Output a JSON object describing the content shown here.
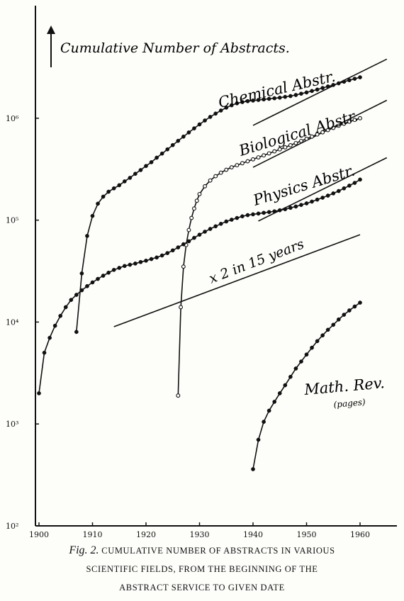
{
  "chart_data": {
    "type": "scatter",
    "y_scale": "log",
    "xlim": [
      1900,
      1970
    ],
    "ylim": [
      100,
      10000000
    ],
    "ylabel": "Cumulative Number of Abstracts.",
    "x_ticks": [
      1900,
      1910,
      1920,
      1930,
      1940,
      1950,
      1960
    ],
    "x_tick_labels": [
      "1900",
      "1910",
      "1920",
      "1930",
      "1940",
      "1950",
      "1960"
    ],
    "y_ticks": [
      100,
      1000,
      10000,
      100000,
      1000000
    ],
    "y_tick_labels": [
      "10²",
      "10³",
      "10⁴",
      "10⁵",
      "10⁶"
    ],
    "grid": false,
    "series": [
      {
        "name": "Chemical Abstr.",
        "marker": "filled",
        "x": [
          1907,
          1908,
          1909,
          1910,
          1911,
          1912,
          1913,
          1914,
          1915,
          1916,
          1917,
          1918,
          1919,
          1920,
          1921,
          1922,
          1923,
          1924,
          1925,
          1926,
          1927,
          1928,
          1929,
          1930,
          1931,
          1932,
          1933,
          1934,
          1935,
          1936,
          1937,
          1938,
          1939,
          1940,
          1941,
          1942,
          1943,
          1944,
          1945,
          1946,
          1947,
          1948,
          1949,
          1950,
          1951,
          1952,
          1953,
          1954,
          1955,
          1956,
          1957,
          1958,
          1959,
          1960
        ],
        "y": [
          8000,
          30000,
          70000,
          110000,
          145000,
          170000,
          190000,
          205000,
          220000,
          240000,
          260000,
          285000,
          310000,
          340000,
          370000,
          410000,
          450000,
          495000,
          545000,
          600000,
          660000,
          725000,
          795000,
          870000,
          950000,
          1030000,
          1110000,
          1190000,
          1270000,
          1340000,
          1400000,
          1440000,
          1470000,
          1490000,
          1510000,
          1530000,
          1550000,
          1570000,
          1590000,
          1620000,
          1650000,
          1690000,
          1740000,
          1790000,
          1850000,
          1910000,
          1980000,
          2050000,
          2120000,
          2200000,
          2280000,
          2360000,
          2440000,
          2520000
        ]
      },
      {
        "name": "Biological Abstr.",
        "marker": "open",
        "x": [
          1926,
          1926.5,
          1927,
          1927.5,
          1928,
          1928.5,
          1929,
          1929.5,
          1930,
          1931,
          1932,
          1933,
          1934,
          1935,
          1936,
          1937,
          1938,
          1939,
          1940,
          1941,
          1942,
          1943,
          1944,
          1945,
          1946,
          1947,
          1948,
          1949,
          1950,
          1951,
          1952,
          1953,
          1954,
          1955,
          1956,
          1957,
          1958,
          1959,
          1960
        ],
        "y": [
          1900,
          14000,
          35000,
          57000,
          80000,
          105000,
          130000,
          155000,
          180000,
          215000,
          245000,
          270000,
          292000,
          312000,
          330000,
          346000,
          362000,
          378000,
          395000,
          413000,
          432000,
          452000,
          473000,
          495000,
          518000,
          543000,
          570000,
          598000,
          628000,
          660000,
          693000,
          728000,
          765000,
          803000,
          843000,
          884000,
          925000,
          962000,
          1000000
        ]
      },
      {
        "name": "Physics Abstr.",
        "marker": "filled",
        "x": [
          1900,
          1901,
          1902,
          1903,
          1904,
          1905,
          1906,
          1907,
          1908,
          1909,
          1910,
          1911,
          1912,
          1913,
          1914,
          1915,
          1916,
          1917,
          1918,
          1919,
          1920,
          1921,
          1922,
          1923,
          1924,
          1925,
          1926,
          1927,
          1928,
          1929,
          1930,
          1931,
          1932,
          1933,
          1934,
          1935,
          1936,
          1937,
          1938,
          1939,
          1940,
          1941,
          1942,
          1943,
          1944,
          1945,
          1946,
          1947,
          1948,
          1949,
          1950,
          1951,
          1952,
          1953,
          1954,
          1955,
          1956,
          1957,
          1958,
          1959,
          1960
        ],
        "y": [
          2000,
          5000,
          7000,
          9200,
          11500,
          14000,
          16500,
          18500,
          20500,
          22500,
          24500,
          26500,
          28500,
          30500,
          32500,
          34000,
          35500,
          36500,
          37500,
          38800,
          40000,
          41500,
          43000,
          45000,
          47500,
          50500,
          54000,
          58000,
          62000,
          67000,
          72000,
          77000,
          82000,
          87000,
          92000,
          97000,
          101000,
          105000,
          109000,
          112000,
          114000,
          116000,
          118000,
          120000,
          122000,
          125000,
          128000,
          132000,
          136000,
          141000,
          146000,
          152000,
          159000,
          166000,
          174000,
          183000,
          193000,
          205000,
          218000,
          232000,
          250000
        ]
      },
      {
        "name": "Math. Rev. (pages)",
        "marker": "filled",
        "x": [
          1940,
          1941,
          1942,
          1943,
          1944,
          1945,
          1946,
          1947,
          1948,
          1949,
          1950,
          1951,
          1952,
          1953,
          1954,
          1955,
          1956,
          1957,
          1958,
          1959,
          1960
        ],
        "y": [
          360,
          700,
          1050,
          1350,
          1650,
          2000,
          2400,
          2900,
          3500,
          4100,
          4800,
          5600,
          6500,
          7400,
          8400,
          9400,
          10600,
          11800,
          13000,
          14200,
          15500
        ]
      }
    ],
    "reference_lines": [
      {
        "label": "",
        "x": [
          1940,
          1965
        ],
        "y": [
          850000,
          3800000
        ]
      },
      {
        "label": "",
        "x": [
          1940,
          1965
        ],
        "y": [
          330000,
          1500000
        ]
      },
      {
        "label": "",
        "x": [
          1941,
          1965
        ],
        "y": [
          98000,
          410000
        ]
      },
      {
        "label": "x 2 in 15 years",
        "x": [
          1914,
          1960
        ],
        "y": [
          9000,
          72000
        ]
      }
    ],
    "annotations": [
      {
        "text": "Chemical Abstr.",
        "series": 0
      },
      {
        "text": "Biological Abstr.",
        "series": 1
      },
      {
        "text": "Physics Abstr.",
        "series": 2
      },
      {
        "text": "x 2 in 15 years",
        "series": null
      },
      {
        "text": "Math. Rev.",
        "series": 3
      },
      {
        "text": "(pages)",
        "series": 3
      }
    ],
    "caption": {
      "figno": "Fig. 2.",
      "line1": "CUMULATIVE NUMBER OF ABSTRACTS IN VARIOUS",
      "line2": "SCIENTIFIC FIELDS, FROM THE BEGINNING OF THE",
      "line3": "ABSTRACT SERVICE TO GIVEN DATE"
    }
  }
}
